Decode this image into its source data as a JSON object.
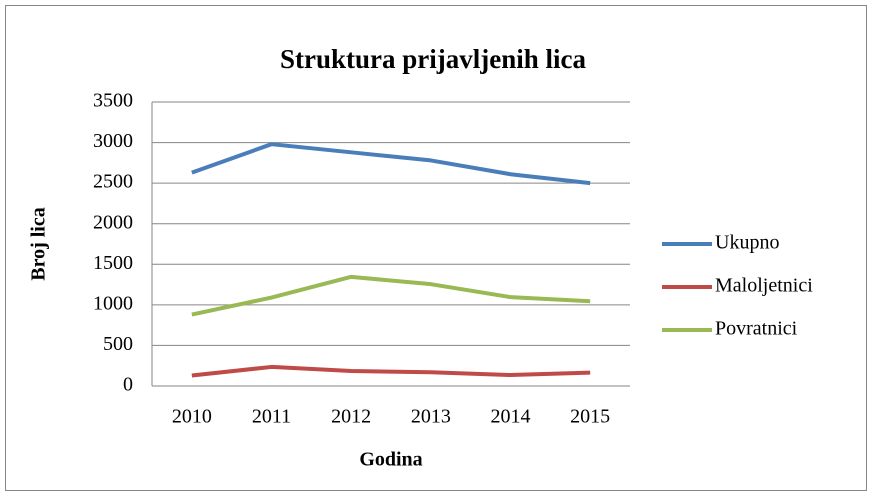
{
  "chart_data": {
    "type": "line",
    "title": "Struktura prijavljenih lica",
    "x_label": "Godina",
    "y_label": "Broj lica",
    "categories": [
      "2010",
      "2011",
      "2012",
      "2013",
      "2014",
      "2015"
    ],
    "series": [
      {
        "name": "Ukupno",
        "color": "#4a7ebb",
        "values": [
          2630,
          2980,
          2880,
          2780,
          2610,
          2500
        ]
      },
      {
        "name": "Maloljetnici",
        "color": "#be4b48",
        "values": [
          130,
          235,
          185,
          170,
          135,
          165
        ]
      },
      {
        "name": "Povratnici",
        "color": "#98b954",
        "values": [
          880,
          1090,
          1345,
          1255,
          1095,
          1045
        ]
      }
    ],
    "ylim": [
      0,
      3500
    ],
    "yticks": [
      0,
      500,
      1000,
      1500,
      2000,
      2500,
      3000,
      3500
    ],
    "grid": true,
    "legend": "right"
  }
}
